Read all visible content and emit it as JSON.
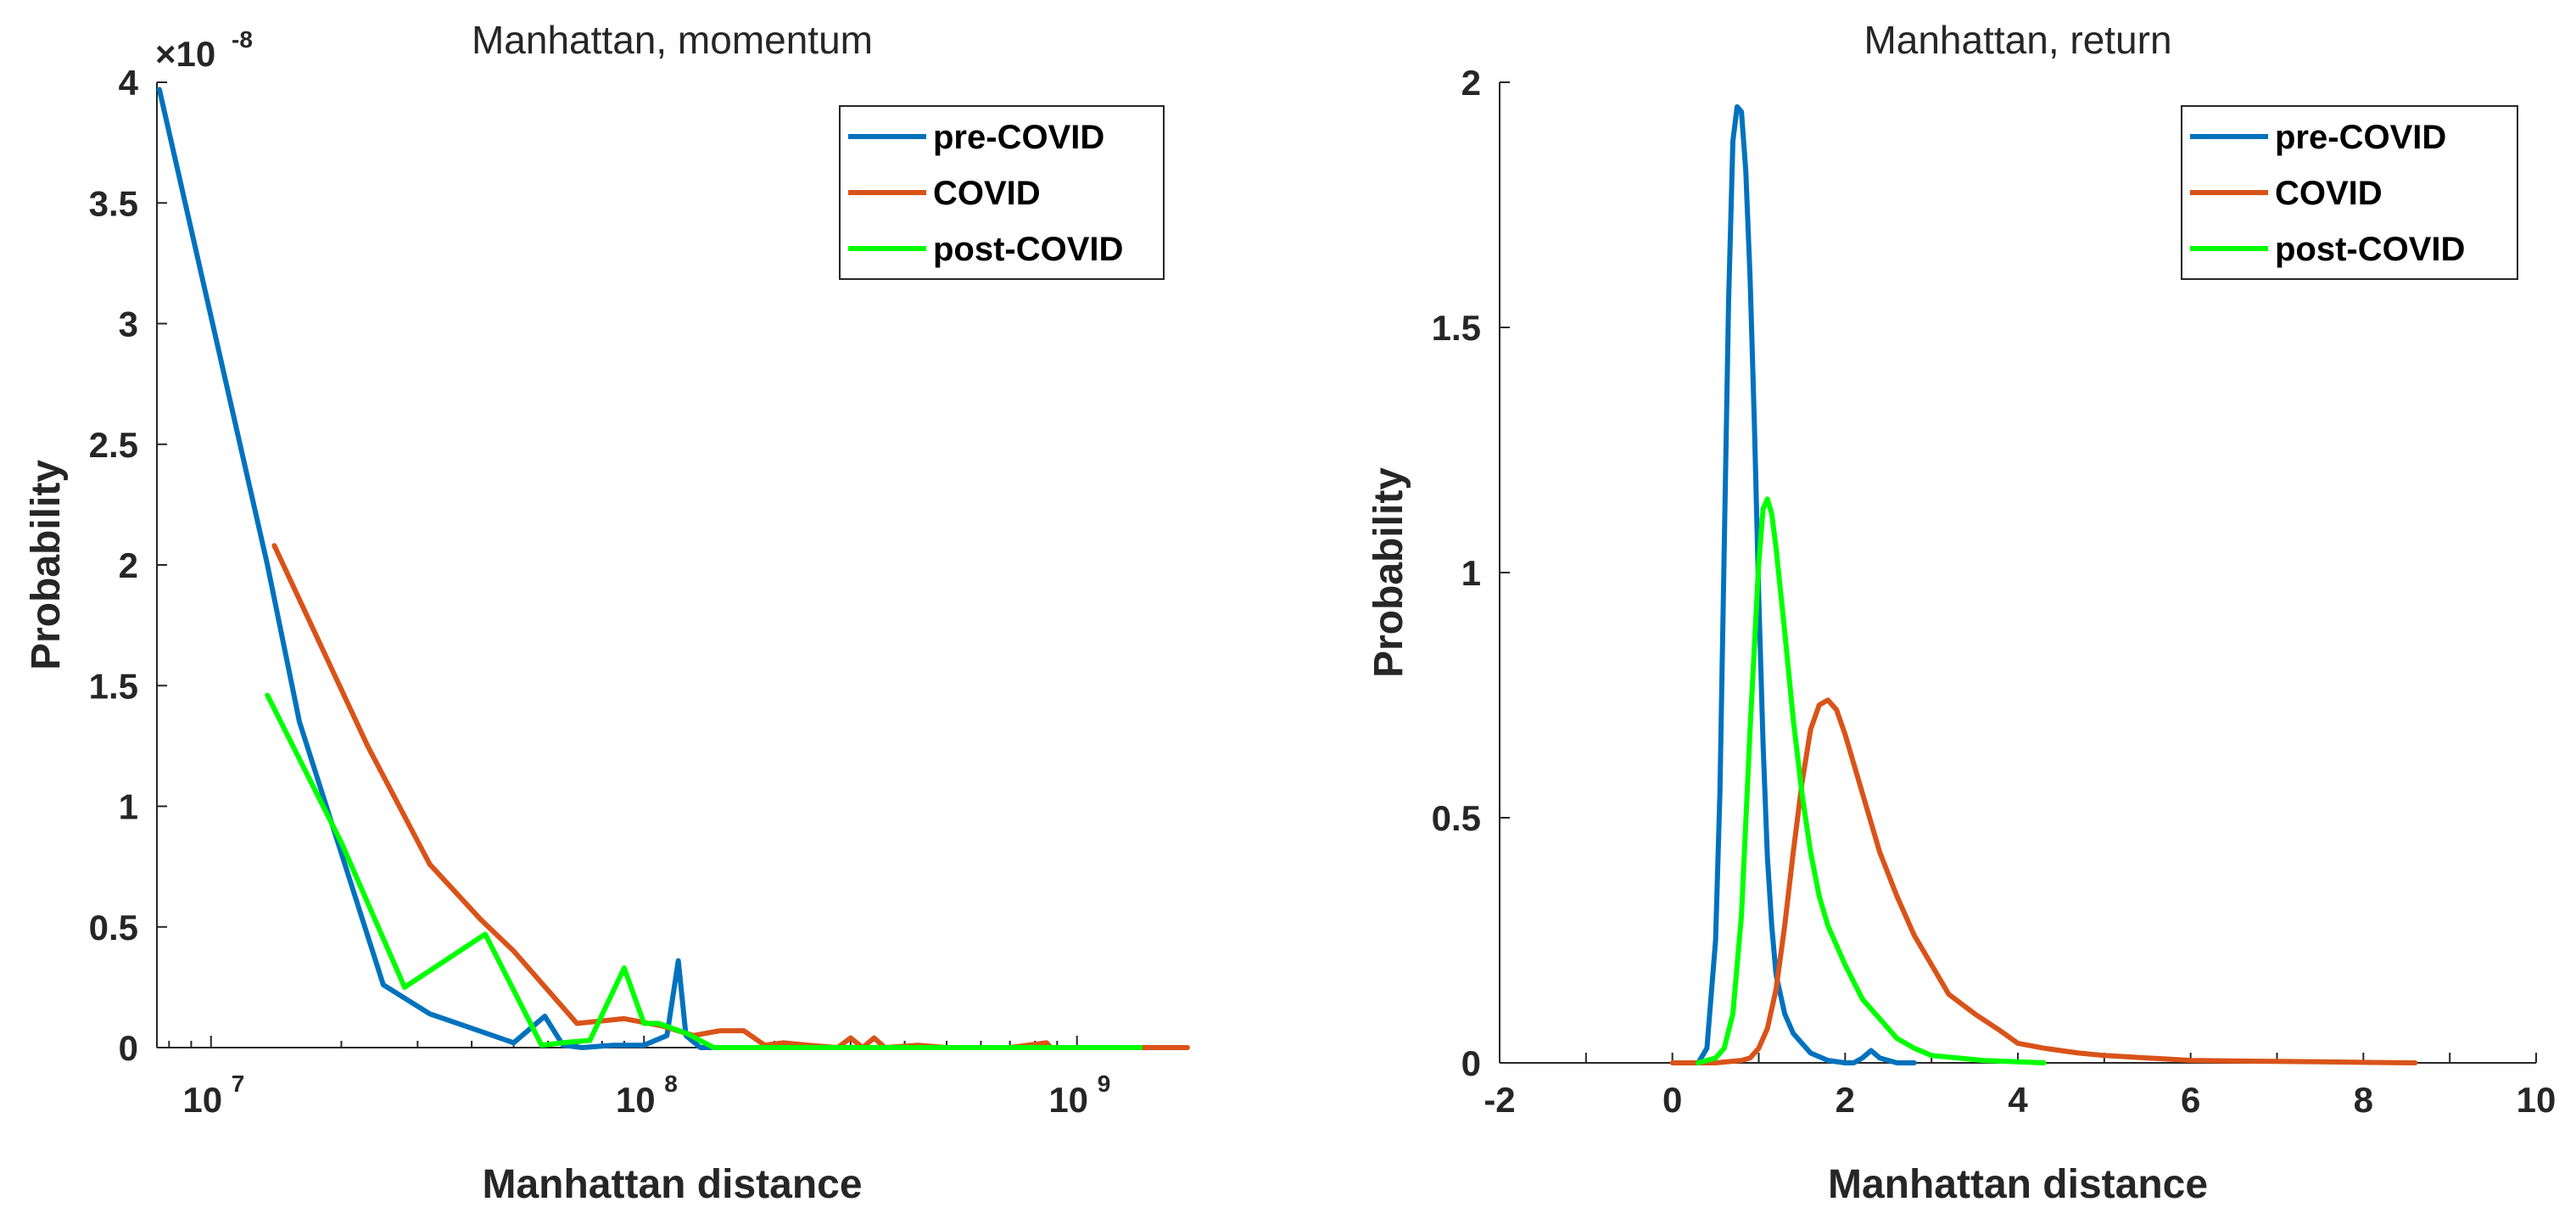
{
  "chart_data": [
    {
      "type": "line",
      "title": "Manhattan, momentum",
      "xlabel": "Manhattan distance",
      "ylabel": "Probability",
      "xscale": "log",
      "xlim": [
        7500000,
        1800000000
      ],
      "ylim": [
        0,
        4
      ],
      "y_exponent_label": "×10",
      "y_exponent_value": "-8",
      "y_ticks": [
        0,
        0.5,
        1,
        1.5,
        2,
        2.5,
        3,
        3.5,
        4
      ],
      "y_tick_labels": [
        "0",
        "0.5",
        "1",
        "1.5",
        "2",
        "2.5",
        "3",
        "3.5",
        "4"
      ],
      "x_ticks": [
        {
          "value": 10000000,
          "base": "10",
          "exp": "7"
        },
        {
          "value": 100000000,
          "base": "10",
          "exp": "8"
        },
        {
          "value": 1000000000,
          "base": "10",
          "exp": "9"
        }
      ],
      "legend_position": "top-right",
      "series": [
        {
          "name": "pre-COVID",
          "color": "#0072bd",
          "x": [
            7600000,
            13500000,
            16000000,
            25000000,
            32000000,
            40000000,
            50000000,
            59000000,
            65000000,
            72000000,
            85000000,
            100000000,
            113000000,
            120000000,
            125000000,
            135000000,
            200000000,
            400000000,
            800000000,
            1400000000
          ],
          "y": [
            3.97,
            2.0,
            1.35,
            0.26,
            0.14,
            0.08,
            0.02,
            0.13,
            0.01,
            0.0,
            0.01,
            0.01,
            0.05,
            0.36,
            0.05,
            0.0,
            0.0,
            0.0,
            0.0,
            0.0
          ]
        },
        {
          "name": "COVID",
          "color": "#d95319",
          "x": [
            14000000,
            23000000,
            32000000,
            42000000,
            50000000,
            70000000,
            90000000,
            110000000,
            130000000,
            150000000,
            170000000,
            190000000,
            210000000,
            240000000,
            280000000,
            300000000,
            320000000,
            340000000,
            360000000,
            430000000,
            500000000,
            700000000,
            850000000,
            870000000,
            900000000,
            1200000000,
            1500000000,
            1800000000
          ],
          "y": [
            2.08,
            1.25,
            0.76,
            0.53,
            0.4,
            0.1,
            0.12,
            0.09,
            0.05,
            0.07,
            0.07,
            0.01,
            0.02,
            0.01,
            0.0,
            0.04,
            0.0,
            0.04,
            0.0,
            0.01,
            0.0,
            0.0,
            0.02,
            0.0,
            0.0,
            0.0,
            0.0,
            0.0
          ]
        },
        {
          "name": "post-COVID",
          "color": "#00ff00",
          "x": [
            13500000,
            20000000,
            28000000,
            43000000,
            58000000,
            65000000,
            75000000,
            90000000,
            100000000,
            108000000,
            125000000,
            145000000,
            300000000,
            600000000,
            1000000000,
            1400000000
          ],
          "y": [
            1.46,
            0.85,
            0.25,
            0.47,
            0.01,
            0.02,
            0.03,
            0.33,
            0.1,
            0.1,
            0.06,
            0.0,
            0.0,
            0.0,
            0.0,
            0.0
          ]
        }
      ]
    },
    {
      "type": "line",
      "title": "Manhattan, return",
      "xlabel": "Manhattan distance",
      "ylabel": "Probability",
      "xlim": [
        -2,
        10
      ],
      "ylim": [
        0,
        2
      ],
      "x_ticks": [
        -2,
        0,
        2,
        4,
        6,
        8,
        10
      ],
      "x_tick_labels": [
        "-2",
        "0",
        "2",
        "4",
        "6",
        "8",
        "10"
      ],
      "y_ticks": [
        0,
        0.5,
        1,
        1.5,
        2
      ],
      "y_tick_labels": [
        "0",
        "0.5",
        "1",
        "1.5",
        "2"
      ],
      "legend_position": "top-right",
      "series": [
        {
          "name": "pre-COVID",
          "color": "#0072bd",
          "x": [
            0.3,
            0.4,
            0.5,
            0.55,
            0.6,
            0.65,
            0.7,
            0.75,
            0.8,
            0.85,
            0.9,
            0.95,
            1.0,
            1.05,
            1.1,
            1.15,
            1.2,
            1.3,
            1.4,
            1.5,
            1.6,
            1.8,
            2.0,
            2.1,
            2.2,
            2.3,
            2.4,
            2.6,
            2.8
          ],
          "y": [
            0.0,
            0.03,
            0.25,
            0.55,
            1.05,
            1.55,
            1.88,
            1.95,
            1.94,
            1.82,
            1.6,
            1.3,
            0.95,
            0.65,
            0.42,
            0.28,
            0.18,
            0.1,
            0.06,
            0.04,
            0.02,
            0.005,
            0.0,
            0.0,
            0.01,
            0.025,
            0.01,
            0.0,
            0.0
          ]
        },
        {
          "name": "COVID",
          "color": "#d95319",
          "x": [
            0.0,
            0.5,
            0.8,
            0.9,
            1.0,
            1.1,
            1.2,
            1.3,
            1.4,
            1.5,
            1.6,
            1.7,
            1.8,
            1.9,
            2.0,
            2.1,
            2.2,
            2.3,
            2.4,
            2.6,
            2.8,
            3.0,
            3.2,
            3.5,
            3.8,
            4.0,
            4.3,
            4.7,
            5.0,
            5.5,
            6.0,
            6.5,
            7.0,
            7.5,
            8.0,
            8.6
          ],
          "y": [
            0.0,
            0.0,
            0.005,
            0.01,
            0.03,
            0.07,
            0.15,
            0.28,
            0.43,
            0.57,
            0.68,
            0.73,
            0.74,
            0.72,
            0.67,
            0.61,
            0.55,
            0.49,
            0.43,
            0.34,
            0.26,
            0.2,
            0.14,
            0.1,
            0.065,
            0.04,
            0.03,
            0.02,
            0.015,
            0.01,
            0.005,
            0.004,
            0.003,
            0.002,
            0.001,
            0.0
          ]
        },
        {
          "name": "post-COVID",
          "color": "#00ff00",
          "x": [
            0.3,
            0.5,
            0.6,
            0.7,
            0.8,
            0.9,
            1.0,
            1.05,
            1.1,
            1.15,
            1.2,
            1.3,
            1.4,
            1.5,
            1.6,
            1.7,
            1.8,
            2.0,
            2.2,
            2.4,
            2.6,
            2.8,
            3.0,
            3.3,
            3.6,
            4.0,
            4.3
          ],
          "y": [
            0.0,
            0.01,
            0.03,
            0.1,
            0.3,
            0.68,
            1.02,
            1.13,
            1.15,
            1.12,
            1.05,
            0.88,
            0.7,
            0.55,
            0.43,
            0.34,
            0.28,
            0.2,
            0.13,
            0.09,
            0.05,
            0.03,
            0.015,
            0.01,
            0.005,
            0.002,
            0.0
          ]
        }
      ]
    }
  ]
}
